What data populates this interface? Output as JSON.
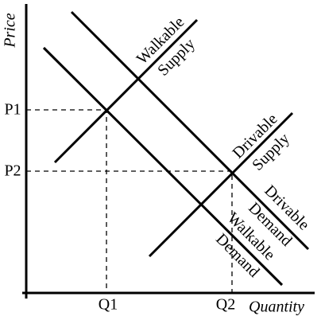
{
  "axes": {
    "y_label": "Price",
    "x_label": "Quantity"
  },
  "ticks": {
    "p1": "P1",
    "p2": "P2",
    "q1": "Q1",
    "q2": "Q2"
  },
  "curves": [
    {
      "label": [
        "Walkable",
        "Supply"
      ]
    },
    {
      "label": [
        "Drivable",
        "Supply"
      ]
    },
    {
      "label": [
        "Drivable",
        "Demand"
      ]
    },
    {
      "label": [
        "Walkable",
        "Demand"
      ]
    }
  ]
}
